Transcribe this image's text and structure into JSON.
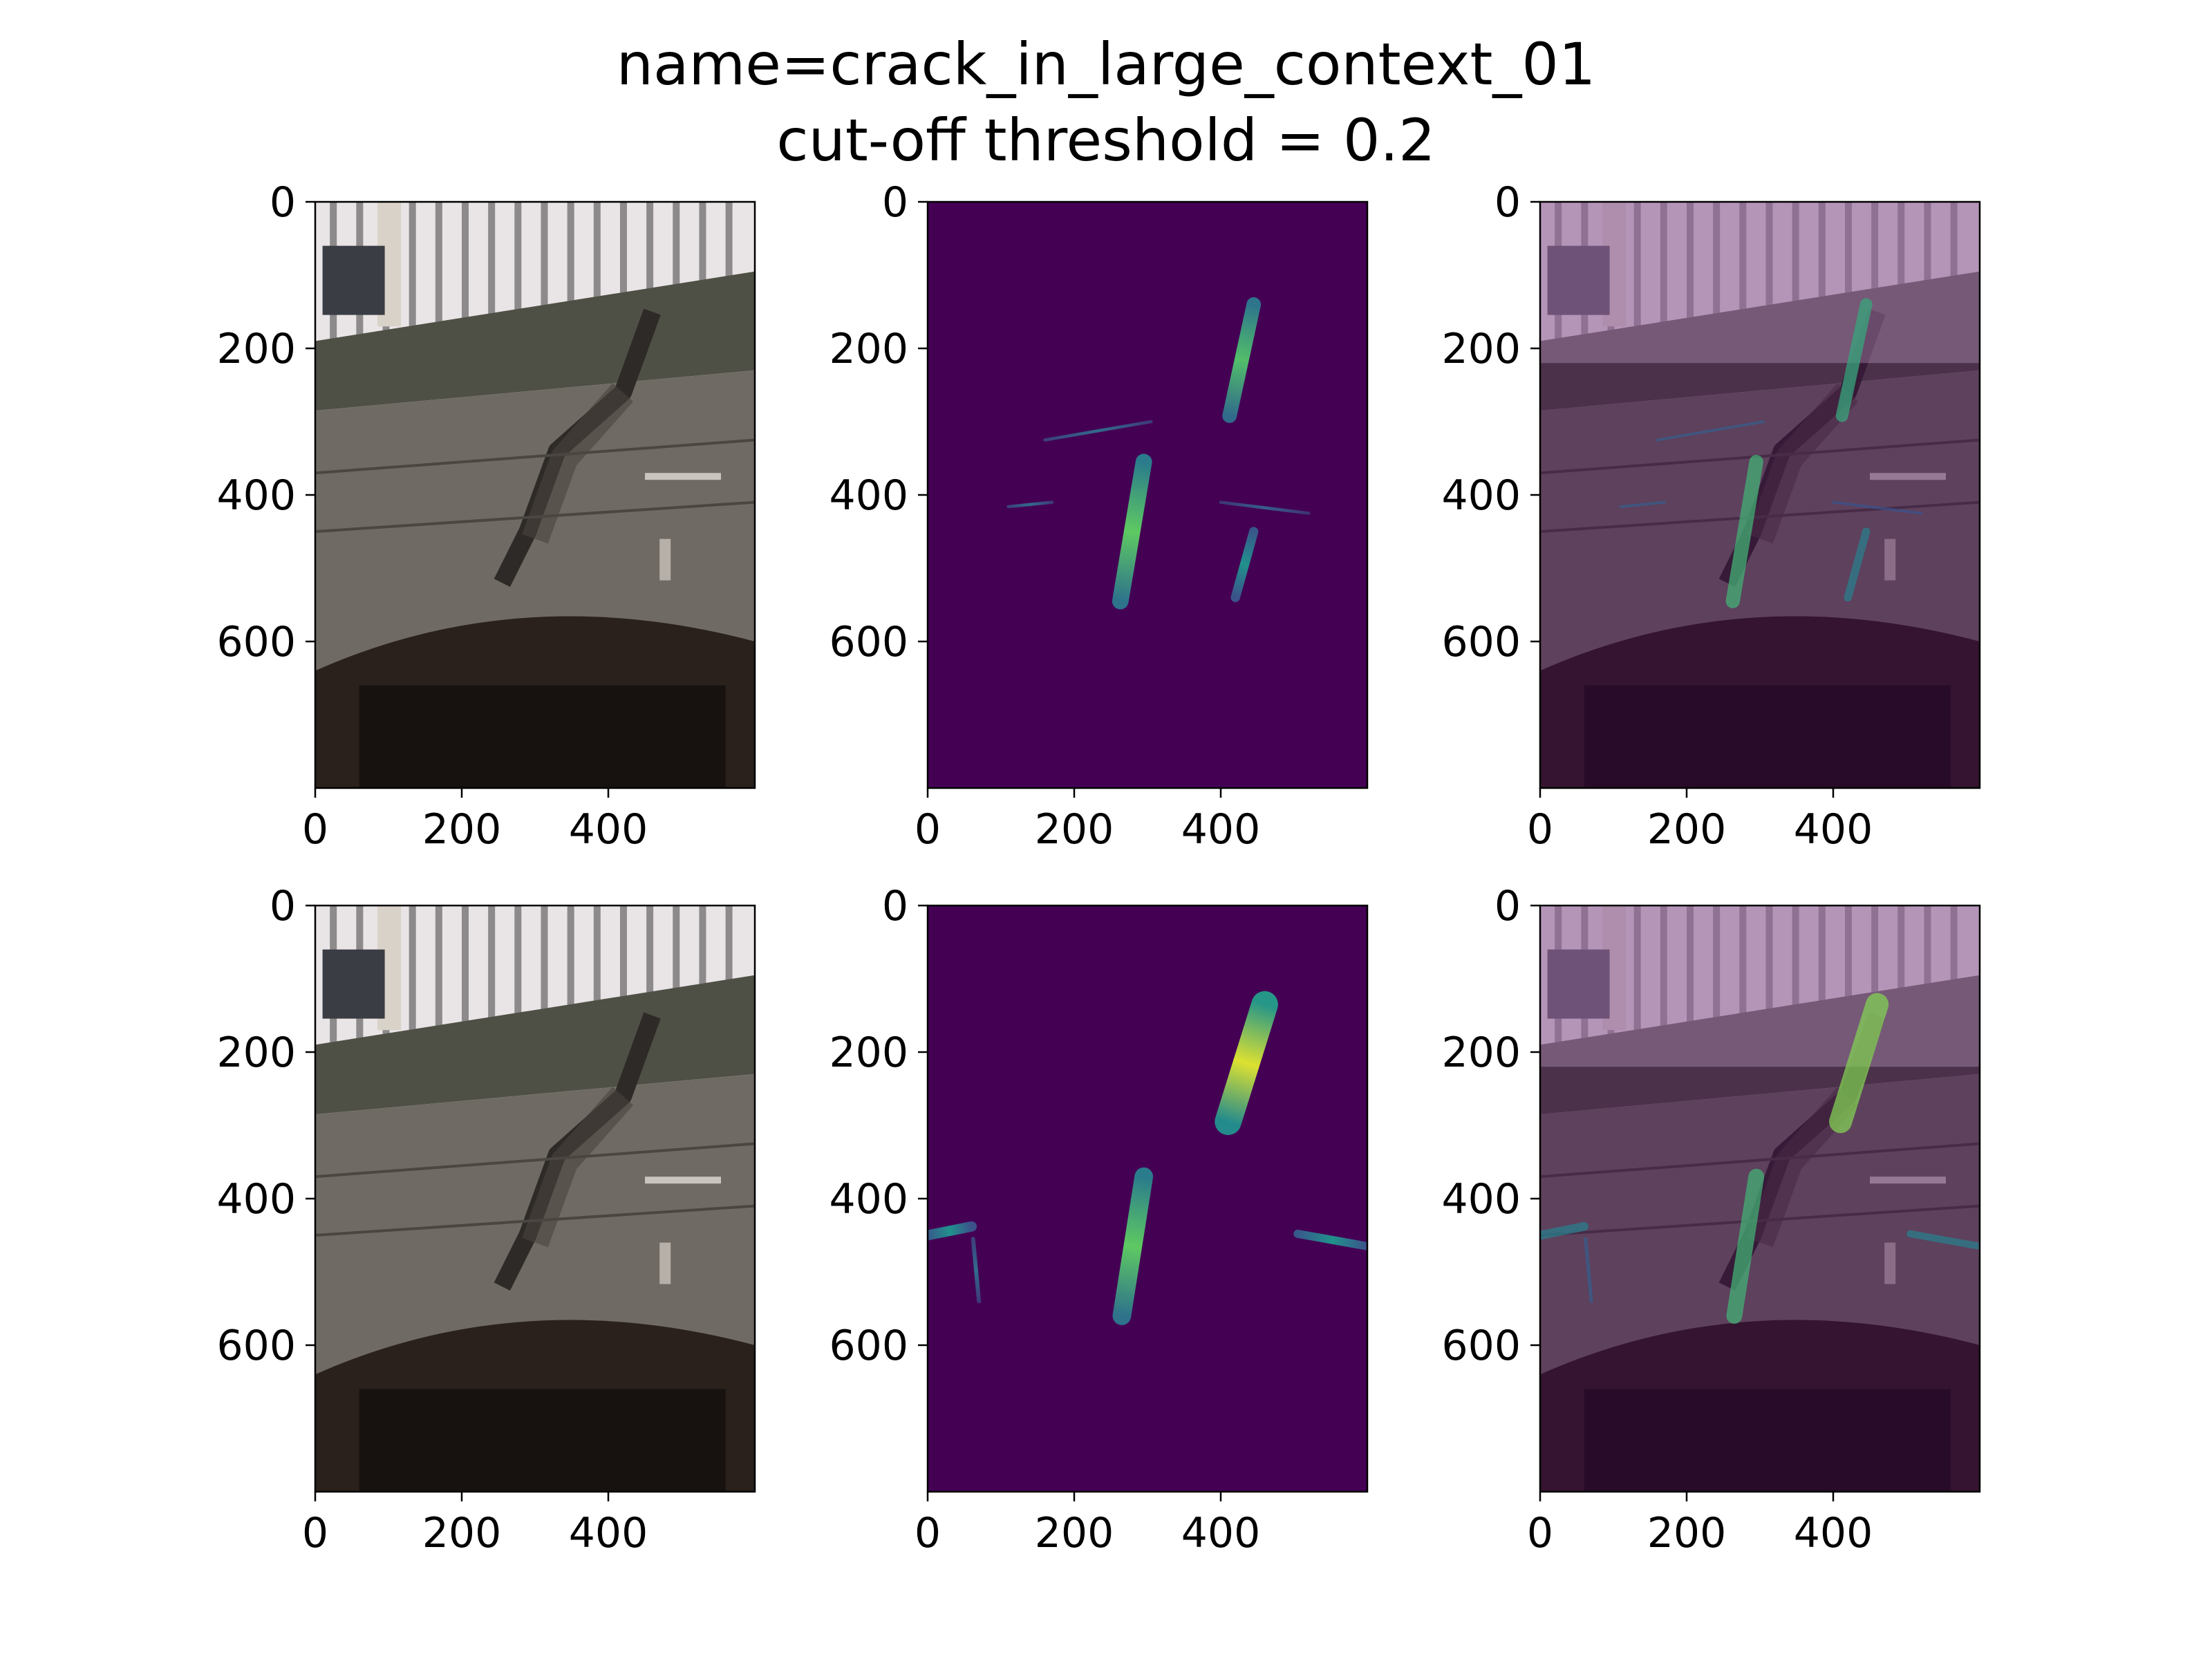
{
  "figure": {
    "title_line1": "name=crack_in_large_context_01",
    "title_line2": "cut-off threshold = 0.2"
  },
  "colors": {
    "viridis_bg": "#440154",
    "overlay_tint": "#c9a7cc",
    "concrete": "#6f6a63",
    "crack": "#2e2a27",
    "railing": "#e9e4e6",
    "arch_shadow": "#17120f"
  },
  "chart_data": [
    {
      "type": "image",
      "row": 0,
      "col": 0,
      "variant": "photo",
      "xticks": [
        0,
        200,
        400
      ],
      "yticks": [
        0,
        200,
        400,
        600
      ],
      "xlim": [
        0,
        600
      ],
      "ylim": [
        800,
        0
      ]
    },
    {
      "type": "heatmap",
      "row": 0,
      "col": 1,
      "variant": "mask",
      "colormap": "viridis",
      "xticks": [
        0,
        200,
        400
      ],
      "yticks": [
        0,
        200,
        400,
        600
      ],
      "xlim": [
        0,
        600
      ],
      "ylim": [
        800,
        0
      ],
      "blobs": [
        {
          "x1": 445,
          "y1": 140,
          "x2": 412,
          "y2": 292,
          "w": 14,
          "peak": 0.7
        },
        {
          "x1": 295,
          "y1": 355,
          "x2": 263,
          "y2": 545,
          "w": 16,
          "peak": 0.75
        },
        {
          "x1": 445,
          "y1": 450,
          "x2": 420,
          "y2": 540,
          "w": 9,
          "peak": 0.5
        },
        {
          "x1": 160,
          "y1": 325,
          "x2": 305,
          "y2": 300,
          "w": 3,
          "peak": 0.35
        },
        {
          "x1": 110,
          "y1": 416,
          "x2": 170,
          "y2": 410,
          "w": 3,
          "peak": 0.35
        },
        {
          "x1": 400,
          "y1": 410,
          "x2": 520,
          "y2": 425,
          "w": 3,
          "peak": 0.3
        }
      ]
    },
    {
      "type": "image",
      "row": 0,
      "col": 2,
      "variant": "overlay",
      "xticks": [
        0,
        200,
        400
      ],
      "yticks": [
        0,
        200,
        400,
        600
      ],
      "xlim": [
        0,
        600
      ],
      "ylim": [
        800,
        0
      ]
    },
    {
      "type": "image",
      "row": 1,
      "col": 0,
      "variant": "photo",
      "xticks": [
        0,
        200,
        400
      ],
      "yticks": [
        0,
        200,
        400,
        600
      ],
      "xlim": [
        0,
        600
      ],
      "ylim": [
        800,
        0
      ]
    },
    {
      "type": "heatmap",
      "row": 1,
      "col": 1,
      "variant": "mask",
      "colormap": "viridis",
      "xticks": [
        0,
        200,
        400
      ],
      "yticks": [
        0,
        200,
        400,
        600
      ],
      "xlim": [
        0,
        600
      ],
      "ylim": [
        800,
        0
      ],
      "blobs": [
        {
          "x1": 460,
          "y1": 135,
          "x2": 410,
          "y2": 295,
          "w": 26,
          "peak": 0.95
        },
        {
          "x1": 295,
          "y1": 370,
          "x2": 265,
          "y2": 560,
          "w": 18,
          "peak": 0.75
        },
        {
          "x1": 0,
          "y1": 450,
          "x2": 60,
          "y2": 438,
          "w": 10,
          "peak": 0.5
        },
        {
          "x1": 62,
          "y1": 455,
          "x2": 70,
          "y2": 540,
          "w": 4,
          "peak": 0.35
        },
        {
          "x1": 505,
          "y1": 448,
          "x2": 600,
          "y2": 465,
          "w": 8,
          "peak": 0.5
        }
      ]
    },
    {
      "type": "image",
      "row": 1,
      "col": 2,
      "variant": "overlay",
      "xticks": [
        0,
        200,
        400
      ],
      "yticks": [
        0,
        200,
        400,
        600
      ],
      "xlim": [
        0,
        600
      ],
      "ylim": [
        800,
        0
      ]
    }
  ]
}
